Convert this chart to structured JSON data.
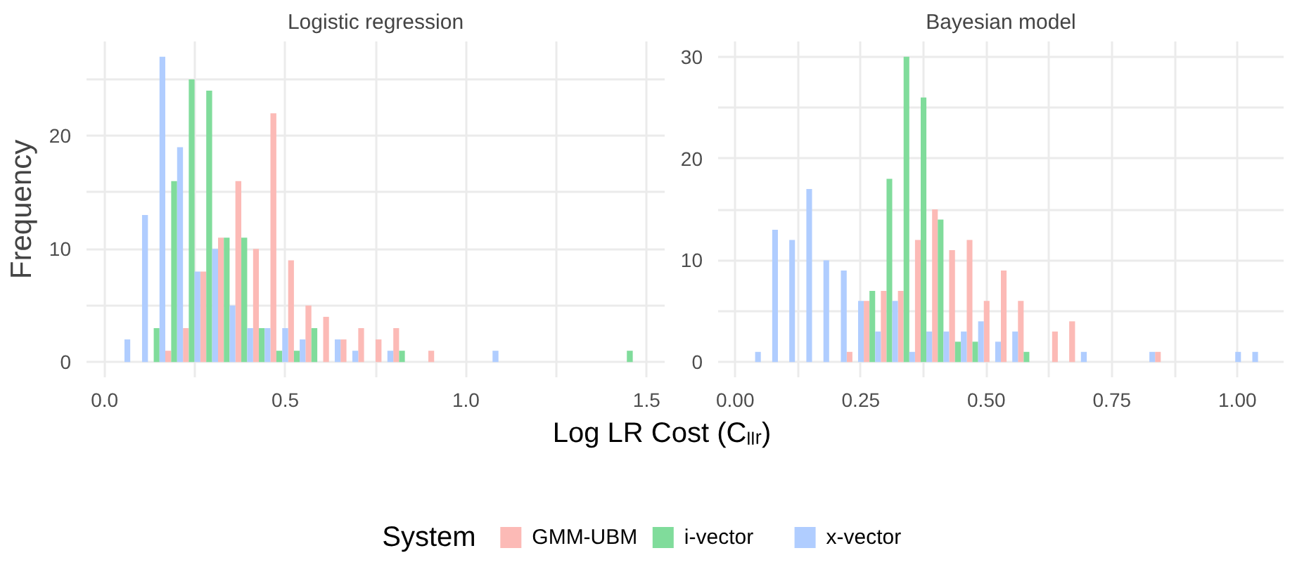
{
  "chart_data": [
    {
      "type": "histogram",
      "title": "Logistic regression",
      "ylabel": "Frequency",
      "bins": [
        0.023,
        0.071,
        0.12,
        0.168,
        0.217,
        0.265,
        0.314,
        0.362,
        0.411,
        0.459,
        0.508,
        0.556,
        0.605,
        0.653,
        0.702,
        0.75,
        0.799,
        0.847,
        0.896,
        0.944,
        1.041,
        1.09,
        1.429,
        1.478
      ],
      "series": [
        {
          "color": "#fcbab6",
          "values": [
            0,
            0,
            0,
            1,
            3,
            8,
            11,
            16,
            10,
            22,
            9,
            5,
            4,
            2,
            3,
            2,
            3,
            0,
            1,
            0,
            0,
            0,
            0
          ]
        },
        {
          "color": "#80dc9b",
          "values": [
            0,
            0,
            3,
            16,
            25,
            24,
            11,
            11,
            3,
            1,
            1,
            3,
            0,
            0,
            0,
            0,
            1,
            0,
            0,
            0,
            0,
            0,
            1
          ]
        },
        {
          "color": "#b0cdff",
          "values": [
            2,
            13,
            27,
            19,
            8,
            10,
            5,
            3,
            3,
            3,
            2,
            0,
            2,
            1,
            0,
            1,
            0,
            0,
            0,
            0,
            1,
            0,
            0
          ]
        }
      ],
      "xlim": [
        -0.05,
        1.55
      ],
      "ylim": [
        -1.35,
        28.35
      ],
      "xticks": [
        {
          "value": 0,
          "label": "0.0"
        },
        {
          "value": 0.25,
          "label": null
        },
        {
          "value": 0.5,
          "label": "0.5"
        },
        {
          "value": 0.75,
          "label": null
        },
        {
          "value": 1,
          "label": "1.0"
        },
        {
          "value": 1.25,
          "label": null
        },
        {
          "value": 1.5,
          "label": "1.5"
        }
      ],
      "yticks": [
        0,
        {
          "value": 5,
          "label": null
        },
        10,
        {
          "value": 15,
          "label": null
        },
        20,
        {
          "value": 25,
          "label": null
        }
      ],
      "grid": true
    },
    {
      "type": "histogram",
      "title": "Bayesian model",
      "xlabel": "Log LR Cost (Cₗₗᵣ)",
      "legend_title": "System",
      "legend": "bottom",
      "bins": [
        0.017,
        0.051,
        0.085,
        0.119,
        0.153,
        0.187,
        0.222,
        0.256,
        0.29,
        0.324,
        0.358,
        0.392,
        0.426,
        0.461,
        0.495,
        0.529,
        0.563,
        0.597,
        0.631,
        0.665,
        0.7,
        0.802,
        0.836,
        0.87,
        0.973,
        1.007,
        1.041
      ],
      "series": [
        {
          "name": "GMM-UBM",
          "color": "#fcbab6",
          "values": [
            0,
            0,
            0,
            0,
            0,
            0,
            1,
            6,
            7,
            7,
            12,
            15,
            11,
            12,
            6,
            9,
            6,
            0,
            3,
            4,
            0,
            0,
            1,
            0,
            0,
            0
          ]
        },
        {
          "name": "i-vector",
          "color": "#80dc9b",
          "values": [
            0,
            0,
            0,
            0,
            0,
            0,
            0,
            7,
            18,
            30,
            26,
            14,
            2,
            2,
            0,
            0,
            1,
            0,
            0,
            0,
            0,
            0,
            0,
            0,
            0,
            0
          ]
        },
        {
          "name": "x-vector",
          "color": "#b0cdff",
          "values": [
            1,
            13,
            12,
            17,
            10,
            9,
            6,
            3,
            6,
            1,
            3,
            3,
            3,
            4,
            2,
            3,
            0,
            0,
            0,
            1,
            0,
            1,
            0,
            0,
            1,
            1
          ]
        }
      ],
      "xlim": [
        -0.034,
        1.092
      ],
      "ylim": [
        -1.5,
        31.5
      ],
      "xticks": [
        {
          "value": 0,
          "label": "0.00"
        },
        {
          "value": 0.125,
          "label": null
        },
        {
          "value": 0.25,
          "label": "0.25"
        },
        {
          "value": 0.375,
          "label": null
        },
        {
          "value": 0.5,
          "label": "0.50"
        },
        {
          "value": 0.625,
          "label": null
        },
        {
          "value": 0.75,
          "label": "0.75"
        },
        {
          "value": 0.875,
          "label": null
        },
        {
          "value": 1,
          "label": "1.00"
        }
      ],
      "yticks": [
        0,
        {
          "value": 5,
          "label": null
        },
        10,
        {
          "value": 15,
          "label": null
        },
        20,
        {
          "value": 25,
          "label": null
        },
        30
      ],
      "grid": true
    }
  ]
}
